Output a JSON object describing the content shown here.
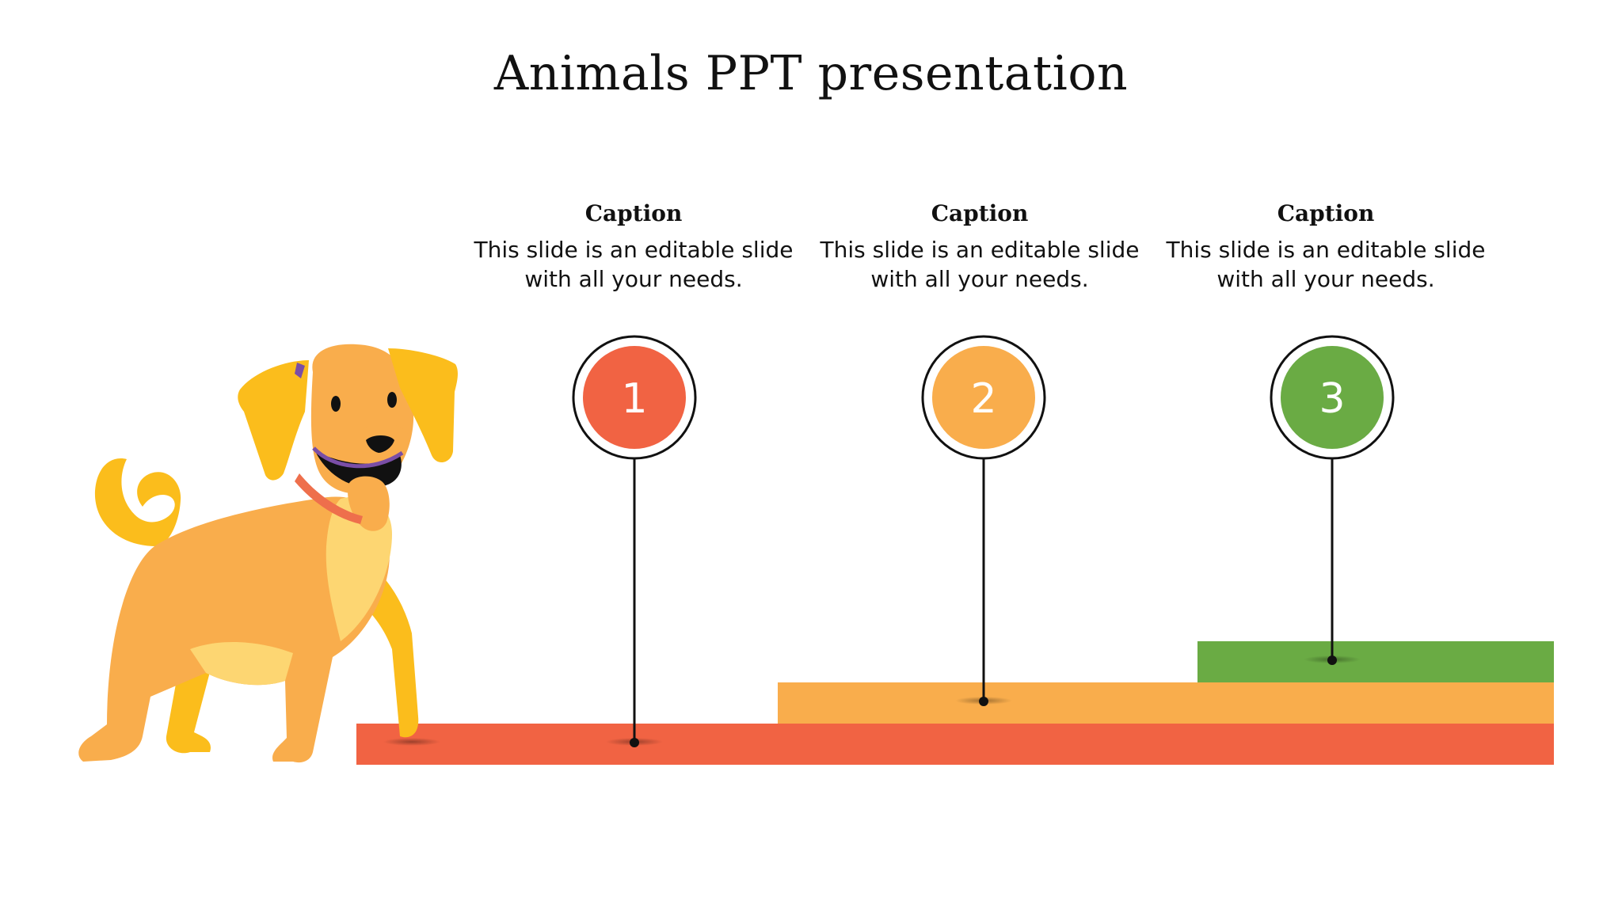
{
  "slide": {
    "title": "Animals PPT presentation"
  },
  "steps": [
    {
      "number": "1",
      "caption_title": "Caption",
      "caption_text": "This slide is an editable slide with all your needs.",
      "color": "#f16343"
    },
    {
      "number": "2",
      "caption_title": "Caption",
      "caption_text": "This slide is an editable slide with all your needs.",
      "color": "#f9ad4c"
    },
    {
      "number": "3",
      "caption_title": "Caption",
      "caption_text": "This slide is an editable slide with all your needs.",
      "color": "#6aab44"
    }
  ],
  "illustration": {
    "subject": "dog-icon",
    "colors": {
      "body": "#f9ad4c",
      "ears": "#fbbd1c",
      "chest": "#fdd672",
      "collar": "#ee6f4c",
      "mouth": "#7a4ea6"
    }
  }
}
